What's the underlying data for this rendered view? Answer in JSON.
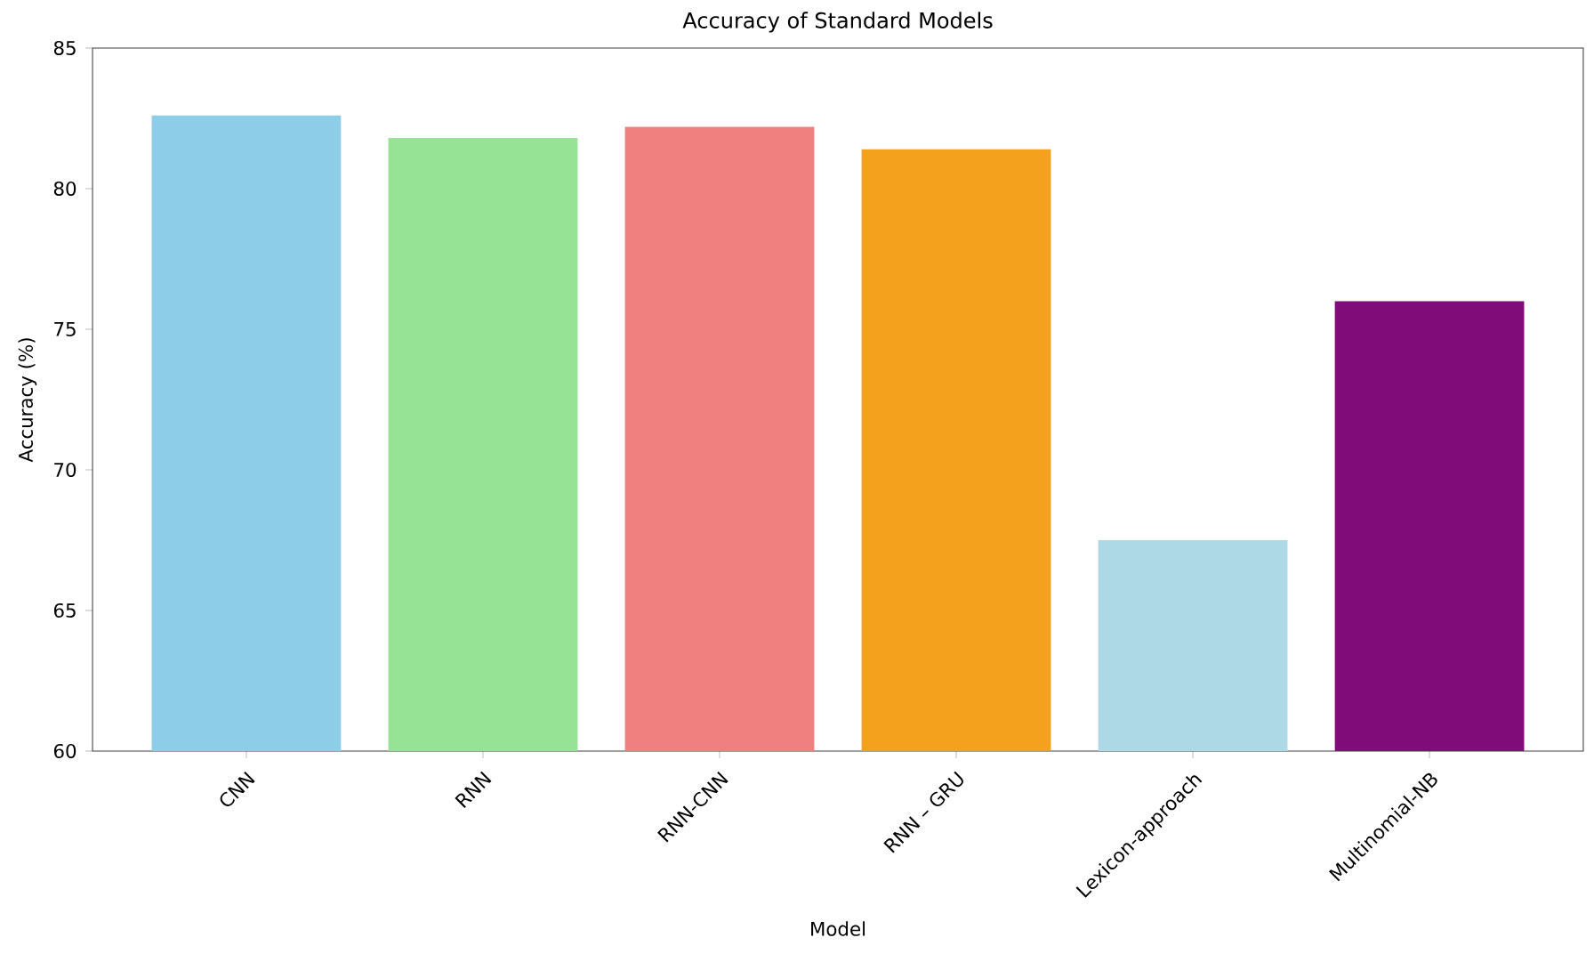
{
  "chart_data": {
    "type": "bar",
    "title": "Accuracy of Standard Models",
    "xlabel": "Model",
    "ylabel": "Accuracy (%)",
    "categories": [
      "CNN",
      "RNN",
      "RNN-CNN",
      "RNN – GRU",
      "Lexicon-approach",
      "Multinomial-NB"
    ],
    "values": [
      82.6,
      81.8,
      82.2,
      81.4,
      67.5,
      76.0
    ],
    "colors": [
      "#8ecde8",
      "#96e396",
      "#f08080",
      "#f4a11e",
      "#add8e6",
      "#7f0c78"
    ],
    "ylim": [
      60,
      85
    ],
    "yticks": [
      60,
      65,
      70,
      75,
      80,
      85
    ]
  }
}
